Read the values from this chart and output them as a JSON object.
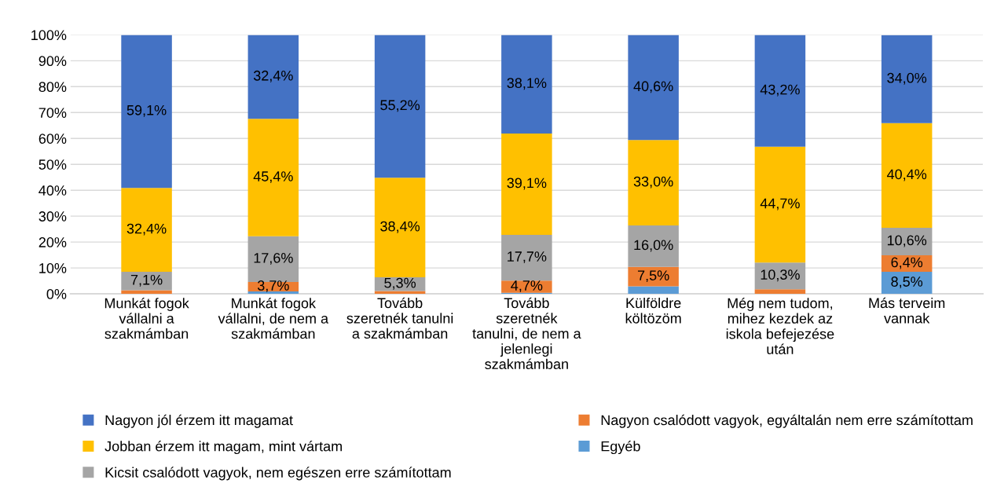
{
  "chart_data": {
    "type": "bar",
    "stacked": true,
    "categories": [
      "Munkát fogok\nvállalni a\nszakmámban",
      "Munkát fogok\nvállalni, de nem a\nszakmámban",
      "Tovább\nszeretnék tanulni\na szakmámban",
      "Tovább\nszeretnék\ntanulni, de nem a\njelenlegi\nszakmámban",
      "Külföldre\nköltözöm",
      "Még nem tudom,\nmihez kezdek az\niskola befejezése\nután",
      "Más terveim\nvannak"
    ],
    "series": [
      {
        "name": "Egyéb",
        "color": "#5b9bd5",
        "values": [
          0,
          0.9,
          0,
          0.4,
          2.9,
          0,
          8.5
        ],
        "value_labels": [
          null,
          null,
          null,
          null,
          null,
          null,
          "8,5%"
        ]
      },
      {
        "name": "Nagyon csalódott vagyok, egyáltalán nem erre számítottam",
        "color": "#ed7d31",
        "values": [
          1.4,
          3.7,
          1.1,
          4.7,
          7.5,
          1.8,
          6.4
        ],
        "value_labels": [
          null,
          "3,7%",
          null,
          "4,7%",
          "7,5%",
          null,
          "6,4%"
        ]
      },
      {
        "name": "Kicsit csalódott vagyok, nem egészen erre számítottam",
        "color": "#a5a5a5",
        "values": [
          7.1,
          17.6,
          5.3,
          17.7,
          16.0,
          10.3,
          10.6
        ],
        "value_labels": [
          "7,1%",
          "17,6%",
          "5,3%",
          "17,7%",
          "16,0%",
          "10,3%",
          "10,6%"
        ]
      },
      {
        "name": "Jobban érzem itt magam, mint vártam",
        "color": "#ffc000",
        "values": [
          32.4,
          45.4,
          38.4,
          39.1,
          33.0,
          44.7,
          40.4
        ],
        "value_labels": [
          "32,4%",
          "45,4%",
          "38,4%",
          "39,1%",
          "33,0%",
          "44,7%",
          "40,4%"
        ]
      },
      {
        "name": "Nagyon jól érzem itt magamat",
        "color": "#4472c4",
        "values": [
          59.1,
          32.4,
          55.2,
          38.1,
          40.6,
          43.2,
          34.0
        ],
        "value_labels": [
          "59,1%",
          "32,4%",
          "55,2%",
          "38,1%",
          "40,6%",
          "43,2%",
          "34,0%"
        ]
      }
    ],
    "ylim": [
      0,
      100
    ],
    "yticks": [
      {
        "value": 0,
        "label": "0%"
      },
      {
        "value": 10,
        "label": "10%"
      },
      {
        "value": 20,
        "label": "20%"
      },
      {
        "value": 30,
        "label": "30%"
      },
      {
        "value": 40,
        "label": "40%"
      },
      {
        "value": 50,
        "label": "50%"
      },
      {
        "value": 60,
        "label": "60%"
      },
      {
        "value": 70,
        "label": "70%"
      },
      {
        "value": 80,
        "label": "80%"
      },
      {
        "value": 90,
        "label": "90%"
      },
      {
        "value": 100,
        "label": "100%"
      }
    ],
    "grid": "y",
    "legend": "bottom"
  }
}
